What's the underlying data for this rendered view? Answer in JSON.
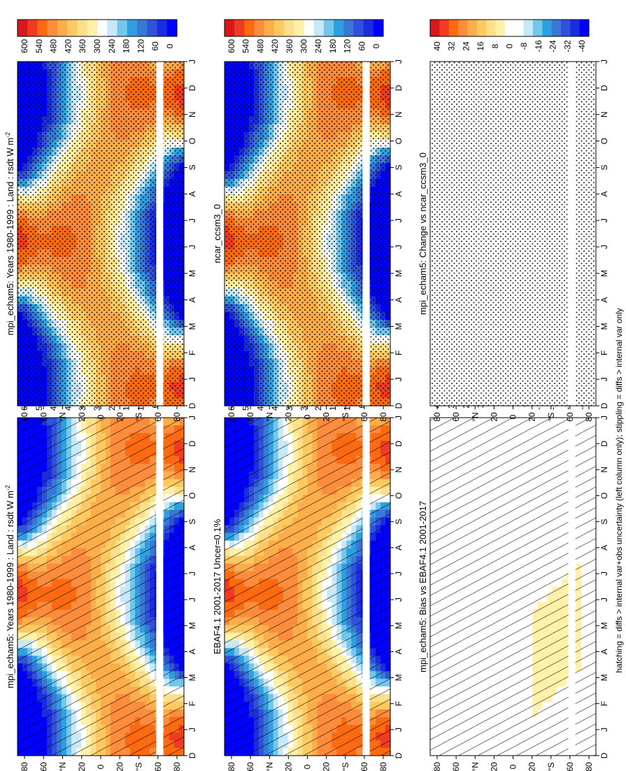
{
  "footer": "hatching = diffs > internal var+obs uncertainty (left column only); stippling = diffs > internal var only",
  "chart_data": {
    "type": "heatmap",
    "orientation_note": "figure rotated 90 degrees counter-clockwise",
    "month_ticks": [
      "D",
      "J",
      "F",
      "M",
      "A",
      "M",
      "J",
      "J",
      "A",
      "S",
      "O",
      "N",
      "D",
      "J"
    ],
    "lat_ticks": [
      "80",
      "60",
      "°N",
      "20",
      "0",
      "20",
      "°S",
      "60",
      "80"
    ],
    "panels": [
      {
        "title": "mpi_echam5: Years 1980-1999 : Land : rsdt W m",
        "title_sup": "-2",
        "kind": "absolute",
        "overlay": "hatch",
        "colorbar": {
          "labels": [
            "600",
            "540",
            "480",
            "420",
            "360",
            "300",
            "240",
            "180",
            "120",
            "60",
            "0"
          ],
          "colors": [
            "#d7191c",
            "#f03b20",
            "#fd6a10",
            "#fd8d3c",
            "#fdae4a",
            "#fdc960",
            "#fee08b",
            "#fff2a8",
            "#ffffff",
            "#c6e8f7",
            "#74c7ec",
            "#2f9fe0",
            "#3a78d6",
            "#2f52d8",
            "#1a2de0",
            "#0000ff"
          ]
        }
      },
      {
        "title": "mpi_echam5: Years 1980-1999 : Land : rsdt W m",
        "title_sup": "-2",
        "kind": "absolute",
        "overlay": "stipple",
        "colorbar": {
          "labels": [
            "600",
            "540",
            "480",
            "420",
            "360",
            "300",
            "240",
            "180",
            "120",
            "60",
            "0"
          ],
          "colors": [
            "#d7191c",
            "#f03b20",
            "#fd6a10",
            "#fd8d3c",
            "#fdae4a",
            "#fdc960",
            "#fee08b",
            "#fff2a8",
            "#ffffff",
            "#c6e8f7",
            "#74c7ec",
            "#2f9fe0",
            "#3a78d6",
            "#2f52d8",
            "#1a2de0",
            "#0000ff"
          ]
        }
      },
      {
        "title": "EBAF4.1 2001-2017 Uncer=0.1%",
        "title_sup": "",
        "kind": "absolute",
        "overlay": "hatch",
        "colorbar": {
          "labels": [
            "600",
            "540",
            "480",
            "420",
            "360",
            "300",
            "240",
            "180",
            "120",
            "60",
            "0"
          ],
          "colors": [
            "#d7191c",
            "#f03b20",
            "#fd6a10",
            "#fd8d3c",
            "#fdae4a",
            "#fdc960",
            "#fee08b",
            "#fff2a8",
            "#ffffff",
            "#c6e8f7",
            "#74c7ec",
            "#2f9fe0",
            "#3a78d6",
            "#2f52d8",
            "#1a2de0",
            "#0000ff"
          ]
        }
      },
      {
        "title": "ncar_ccsm3_0",
        "title_sup": "",
        "kind": "absolute",
        "overlay": "stipple",
        "colorbar": {
          "labels": [
            "600",
            "540",
            "480",
            "420",
            "360",
            "300",
            "240",
            "180",
            "120",
            "60",
            "0"
          ],
          "colors": [
            "#d7191c",
            "#f03b20",
            "#fd6a10",
            "#fd8d3c",
            "#fdae4a",
            "#fdc960",
            "#fee08b",
            "#fff2a8",
            "#ffffff",
            "#c6e8f7",
            "#74c7ec",
            "#2f9fe0",
            "#3a78d6",
            "#2f52d8",
            "#1a2de0",
            "#0000ff"
          ]
        }
      },
      {
        "title": "mpi_echam5: Bias vs EBAF4.1 2001-2017",
        "title_sup": "",
        "kind": "diff",
        "overlay": "hatch",
        "colorbar": {
          "labels": [
            "40",
            "32",
            "24",
            "16",
            "8",
            "0",
            "-8",
            "-16",
            "-24",
            "-32",
            "-40"
          ],
          "colors": [
            "#d7191c",
            "#f03b20",
            "#fd6a10",
            "#fd8d3c",
            "#fdae4a",
            "#fdc960",
            "#fee08b",
            "#fff2a8",
            "#ffffff",
            "#ffffff",
            "#c6e8f7",
            "#74c7ec",
            "#2f9fe0",
            "#3a78d6",
            "#2f52d8",
            "#1a2de0",
            "#0000ff"
          ]
        }
      },
      {
        "title": "mpi_echam5: Change vs ncar_ccsm3_0",
        "title_sup": "",
        "kind": "diff",
        "overlay": "stipple",
        "colorbar": {
          "labels": [
            "40",
            "32",
            "24",
            "16",
            "8",
            "0",
            "-8",
            "-16",
            "-24",
            "-32",
            "-40"
          ],
          "colors": [
            "#d7191c",
            "#f03b20",
            "#fd6a10",
            "#fd8d3c",
            "#fdae4a",
            "#fdc960",
            "#fee08b",
            "#fff2a8",
            "#ffffff",
            "#ffffff",
            "#c6e8f7",
            "#74c7ec",
            "#2f9fe0",
            "#3a78d6",
            "#2f52d8",
            "#1a2de0",
            "#0000ff"
          ]
        }
      }
    ]
  }
}
